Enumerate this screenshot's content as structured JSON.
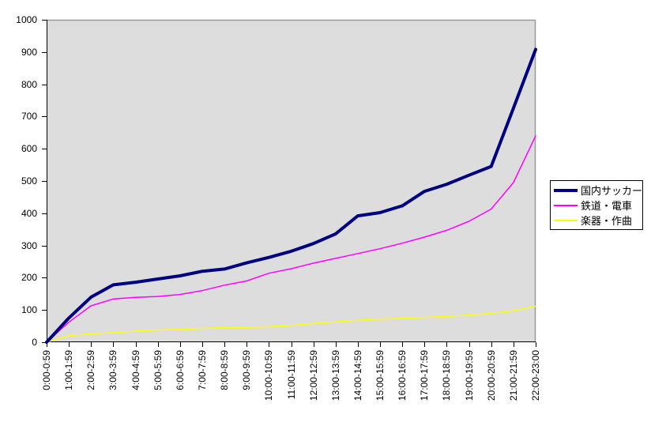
{
  "chart_data": {
    "type": "line",
    "title": "",
    "xlabel": "",
    "ylabel": "",
    "ylim": [
      0,
      1000
    ],
    "ytick_step": 100,
    "yticks": [
      0,
      100,
      200,
      300,
      400,
      500,
      600,
      700,
      800,
      900,
      1000
    ],
    "grid": false,
    "legend_position": "right",
    "categories": [
      "0:00-0:59",
      "1:00-1:59",
      "2:00-2:59",
      "3:00-3:59",
      "4:00-4:59",
      "5:00-5:59",
      "6:00-6:59",
      "7:00-7:59",
      "8:00-8:59",
      "9:00-9:59",
      "10:00-10:59",
      "11:00-11:59",
      "12:00-12:59",
      "13:00-13:59",
      "14:00-14:59",
      "15:00-15:59",
      "16:00-16:59",
      "17:00-17:59",
      "18:00-18:59",
      "19:00-19:59",
      "20:00-20:59",
      "21:00-21:59",
      "22:00-23:00"
    ],
    "series": [
      {
        "name": "国内サッカー",
        "color": "#000080",
        "line_width": 4,
        "values": [
          0,
          75,
          140,
          178,
          186,
          196,
          206,
          220,
          227,
          246,
          263,
          282,
          306,
          336,
          392,
          402,
          423,
          468,
          490,
          518,
          545,
          726,
          908
        ]
      },
      {
        "name": "鉄道・電車",
        "color": "#FF00FF",
        "line_width": 1.5,
        "values": [
          0,
          62,
          113,
          134,
          139,
          142,
          148,
          160,
          177,
          190,
          214,
          228,
          245,
          260,
          275,
          290,
          307,
          326,
          347,
          375,
          413,
          495,
          640
        ]
      },
      {
        "name": "楽器・作曲",
        "color": "#FFFF00",
        "line_width": 1.5,
        "values": [
          0,
          20,
          26,
          30,
          34,
          38,
          40,
          43,
          45,
          46,
          48,
          52,
          58,
          63,
          68,
          72,
          74,
          77,
          80,
          84,
          90,
          97,
          112
        ]
      }
    ],
    "colors": {
      "plot_bg": "#DDDDDD",
      "plot_border": "#999999",
      "axis": "#000000",
      "legend_bg": "#FFFFFF",
      "legend_border": "#000000",
      "text": "#000000"
    }
  }
}
